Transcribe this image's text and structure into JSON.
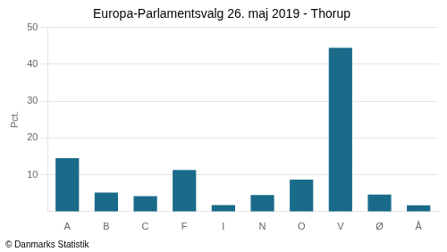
{
  "chart_data": {
    "type": "bar",
    "title": "Europa-Parlamentsvalg 26. maj 2019 - Thorup",
    "categories": [
      "A",
      "B",
      "C",
      "F",
      "I",
      "N",
      "O",
      "V",
      "Ø",
      "Å"
    ],
    "values": [
      14.5,
      5.2,
      4.2,
      11.3,
      1.8,
      4.5,
      8.7,
      44.5,
      4.6,
      1.7
    ],
    "color": "#1a6b8a",
    "ylabel": "Pct.",
    "ylim": [
      0,
      50
    ],
    "yticks": [
      10,
      20,
      30,
      40,
      50
    ],
    "grid": true,
    "annotations": [
      "© Danmarks Statistik"
    ]
  }
}
